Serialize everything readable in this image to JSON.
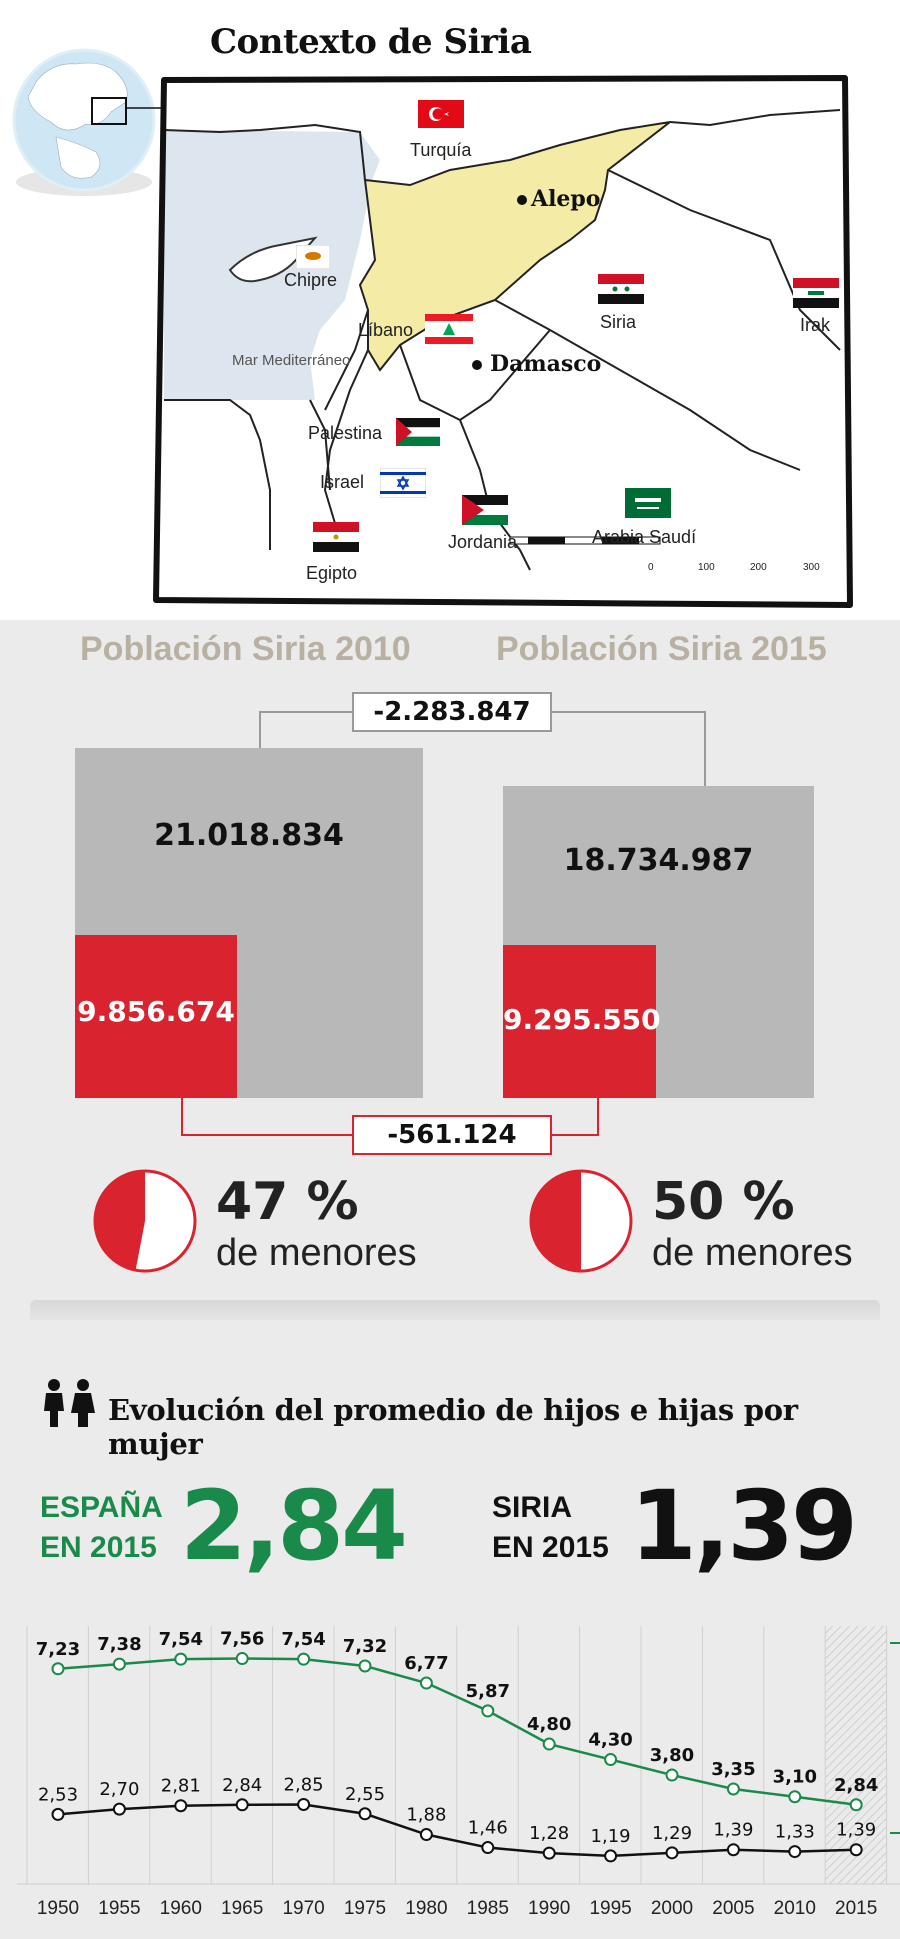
{
  "map": {
    "title": "Contexto de Siria",
    "countries": {
      "turkey": "Turquía",
      "syria": "Siria",
      "iraq": "Irak",
      "cyprus": "Chipre",
      "lebanon": "Líbano",
      "sea": "Mar Mediterráneo",
      "palestine": "Palestina",
      "israel": "Israel",
      "jordan": "Jordania",
      "saudi": "Arabia Saudí",
      "egypt": "Egipto"
    },
    "cities": {
      "aleppo": "Alepo",
      "damascus": "Damasco"
    },
    "scale": [
      "0",
      "100",
      "200",
      "300"
    ],
    "colors": {
      "syria": "#f3eba6",
      "sea": "#dde6ee",
      "land": "#ffffff",
      "border": "#222222"
    }
  },
  "population": {
    "left": {
      "title": "Población Siria 2010",
      "total": "21.018.834",
      "minors": "9.856.674",
      "pct": "47 %",
      "pct_label": "de menores",
      "pct_value": 0.47
    },
    "right": {
      "title": "Población Siria 2015",
      "total": "18.734.987",
      "minors": "9.295.550",
      "pct": "50 %",
      "pct_label": "de menores",
      "pct_value": 0.5
    },
    "diff_total": "-2.283.847",
    "diff_minors": "-561.124",
    "colors": {
      "red": "#d9232e",
      "gray": "#b8b8b8",
      "title": "#b8b0a2"
    }
  },
  "fertility": {
    "title": "Evolución del promedio de hijos e hijas por mujer",
    "spain": {
      "label_line1": "ESPAÑA",
      "label_line2": "EN 2015",
      "value": "2,84",
      "color": "#1a8a4a"
    },
    "syria": {
      "label_line1": "SIRIA",
      "label_line2": "EN 2015",
      "value": "1,39",
      "color": "#111111"
    },
    "people_icon": "people-icon"
  },
  "chart_data": {
    "type": "line",
    "x": [
      "1950",
      "1955",
      "1960",
      "1965",
      "1970",
      "1975",
      "1980",
      "1985",
      "1990",
      "1995",
      "2000",
      "2005",
      "2010",
      "2015"
    ],
    "series": [
      {
        "values": [
          7.23,
          7.38,
          7.54,
          7.56,
          7.54,
          7.32,
          6.77,
          5.87,
          4.8,
          4.3,
          3.8,
          3.35,
          3.1,
          2.84
        ],
        "labels": [
          "7,23",
          "7,38",
          "7,54",
          "7,56",
          "7,54",
          "7,32",
          "6,77",
          "5,87",
          "4,80",
          "4,30",
          "3,80",
          "3,35",
          "3,10",
          "2,84"
        ],
        "color": "#1a8a4a"
      },
      {
        "values": [
          2.53,
          2.7,
          2.81,
          2.84,
          2.85,
          2.55,
          1.88,
          1.46,
          1.28,
          1.19,
          1.29,
          1.39,
          1.33,
          1.39
        ],
        "labels": [
          "2,53",
          "2,70",
          "2,81",
          "2,84",
          "2,85",
          "2,55",
          "1,88",
          "1,46",
          "1,28",
          "1,19",
          "1,29",
          "1,39",
          "1,33",
          "1,39"
        ],
        "color": "#111111"
      }
    ],
    "grid": true
  }
}
